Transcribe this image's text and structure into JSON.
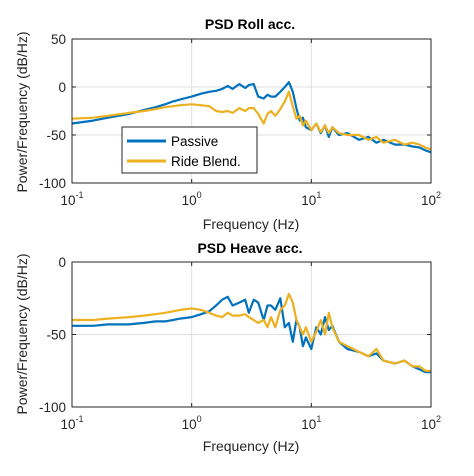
{
  "chart_data": [
    {
      "type": "line",
      "title": "PSD Roll acc.",
      "xlabel": "Frequency (Hz)",
      "ylabel": "Power/Frequency (dB/Hz)",
      "xscale": "log",
      "xlim": [
        0.1,
        100
      ],
      "ylim": [
        -100,
        50
      ],
      "xticks": [
        0.1,
        1,
        10,
        100
      ],
      "xtick_labels": [
        {
          "base": "10",
          "exp": "-1"
        },
        {
          "base": "10",
          "exp": "0"
        },
        {
          "base": "10",
          "exp": "1"
        },
        {
          "base": "10",
          "exp": "2"
        }
      ],
      "yticks": [
        "50",
        "0",
        "-50",
        "-100"
      ],
      "yticks_values": [
        50,
        0,
        -50,
        -100
      ],
      "grid": true,
      "legend": {
        "position": "lower-left",
        "entries": [
          "Passive",
          "Ride Blend."
        ]
      },
      "series": [
        {
          "name": "Passive",
          "color": "#0072BD",
          "x": [
            0.1,
            0.15,
            0.2,
            0.3,
            0.4,
            0.5,
            0.6,
            0.7,
            0.8,
            1.0,
            1.2,
            1.4,
            1.6,
            1.8,
            2.0,
            2.2,
            2.5,
            2.8,
            3.0,
            3.3,
            3.6,
            4.0,
            4.3,
            4.6,
            5.0,
            5.5,
            6.0,
            6.5,
            7.0,
            7.5,
            8.0,
            8.5,
            9.0,
            10,
            11,
            12,
            13,
            14,
            15,
            17,
            20,
            25,
            30,
            35,
            40,
            50,
            60,
            70,
            80,
            90,
            100
          ],
          "y": [
            -38,
            -35,
            -32,
            -28,
            -24,
            -21,
            -18,
            -15,
            -13,
            -10,
            -7,
            -5,
            -4,
            -2,
            1,
            -2,
            3,
            -1,
            2,
            3,
            -10,
            -12,
            -8,
            -10,
            -10,
            -5,
            0,
            5,
            -5,
            -22,
            -35,
            -32,
            -42,
            -45,
            -38,
            -48,
            -40,
            -52,
            -42,
            -50,
            -48,
            -55,
            -52,
            -58,
            -55,
            -60,
            -60,
            -62,
            -63,
            -66,
            -68
          ]
        },
        {
          "name": "Ride Blend.",
          "color": "#EDB120",
          "x": [
            0.1,
            0.15,
            0.2,
            0.3,
            0.4,
            0.5,
            0.6,
            0.7,
            0.8,
            1.0,
            1.2,
            1.4,
            1.6,
            1.8,
            2.0,
            2.2,
            2.5,
            2.8,
            3.0,
            3.3,
            3.6,
            4.0,
            4.3,
            4.6,
            5.0,
            5.5,
            6.0,
            6.5,
            7.0,
            7.5,
            8.0,
            8.5,
            9.0,
            10,
            11,
            12,
            13,
            14,
            15,
            17,
            20,
            25,
            30,
            35,
            40,
            50,
            60,
            70,
            80,
            90,
            100
          ],
          "y": [
            -33,
            -32,
            -30,
            -27,
            -25,
            -23,
            -21,
            -20,
            -19,
            -18,
            -19,
            -20,
            -25,
            -26,
            -25,
            -27,
            -22,
            -25,
            -22,
            -22,
            -28,
            -38,
            -28,
            -25,
            -30,
            -23,
            -15,
            -5,
            -20,
            -33,
            -30,
            -40,
            -35,
            -45,
            -38,
            -47,
            -40,
            -48,
            -42,
            -48,
            -50,
            -50,
            -55,
            -52,
            -58,
            -55,
            -60,
            -58,
            -60,
            -63,
            -65
          ]
        }
      ]
    },
    {
      "type": "line",
      "title": "PSD Heave acc.",
      "xlabel": "Frequency (Hz)",
      "ylabel": "Power/Frequency (dB/Hz)",
      "xscale": "log",
      "xlim": [
        0.1,
        100
      ],
      "ylim": [
        -100,
        0
      ],
      "xticks": [
        0.1,
        1,
        10,
        100
      ],
      "xtick_labels": [
        {
          "base": "10",
          "exp": "-1"
        },
        {
          "base": "10",
          "exp": "0"
        },
        {
          "base": "10",
          "exp": "1"
        },
        {
          "base": "10",
          "exp": "2"
        }
      ],
      "yticks": [
        "0",
        "-50",
        "-100"
      ],
      "yticks_values": [
        0,
        -50,
        -100
      ],
      "grid": true,
      "series": [
        {
          "name": "Passive",
          "color": "#0072BD",
          "x": [
            0.1,
            0.15,
            0.2,
            0.3,
            0.4,
            0.5,
            0.6,
            0.7,
            0.8,
            1.0,
            1.2,
            1.4,
            1.6,
            1.8,
            2.0,
            2.2,
            2.5,
            2.8,
            3.0,
            3.3,
            3.6,
            4.0,
            4.3,
            4.6,
            5.0,
            5.5,
            6.0,
            6.5,
            7.0,
            7.5,
            8.0,
            8.5,
            9.0,
            10,
            11,
            12,
            13,
            14,
            15,
            17,
            20,
            25,
            30,
            35,
            40,
            50,
            60,
            70,
            80,
            90,
            100
          ],
          "y": [
            -44,
            -44,
            -43,
            -43,
            -42,
            -41,
            -41,
            -40,
            -39,
            -38,
            -36,
            -34,
            -30,
            -26,
            -24,
            -30,
            -28,
            -26,
            -35,
            -26,
            -28,
            -40,
            -30,
            -30,
            -33,
            -25,
            -45,
            -42,
            -55,
            -40,
            -45,
            -58,
            -52,
            -60,
            -45,
            -50,
            -38,
            -47,
            -44,
            -55,
            -60,
            -62,
            -65,
            -63,
            -68,
            -70,
            -68,
            -72,
            -74,
            -76,
            -76
          ]
        },
        {
          "name": "Ride Blend.",
          "color": "#EDB120",
          "x": [
            0.1,
            0.15,
            0.2,
            0.3,
            0.4,
            0.5,
            0.6,
            0.7,
            0.8,
            1.0,
            1.2,
            1.4,
            1.6,
            1.8,
            2.0,
            2.2,
            2.5,
            2.8,
            3.0,
            3.3,
            3.6,
            4.0,
            4.3,
            4.6,
            5.0,
            5.5,
            6.0,
            6.5,
            7.0,
            7.5,
            8.0,
            8.5,
            9.0,
            10,
            11,
            12,
            13,
            14,
            15,
            17,
            20,
            25,
            30,
            35,
            40,
            50,
            60,
            70,
            80,
            90,
            100
          ],
          "y": [
            -40,
            -40,
            -39,
            -38,
            -37,
            -36,
            -35,
            -34,
            -33,
            -32,
            -33,
            -35,
            -37,
            -38,
            -35,
            -37,
            -37,
            -36,
            -38,
            -40,
            -42,
            -40,
            -45,
            -38,
            -45,
            -33,
            -30,
            -22,
            -28,
            -40,
            -45,
            -50,
            -45,
            -55,
            -48,
            -40,
            -50,
            -35,
            -45,
            -55,
            -58,
            -62,
            -65,
            -60,
            -68,
            -70,
            -68,
            -72,
            -72,
            -75,
            -75
          ]
        }
      ]
    }
  ]
}
